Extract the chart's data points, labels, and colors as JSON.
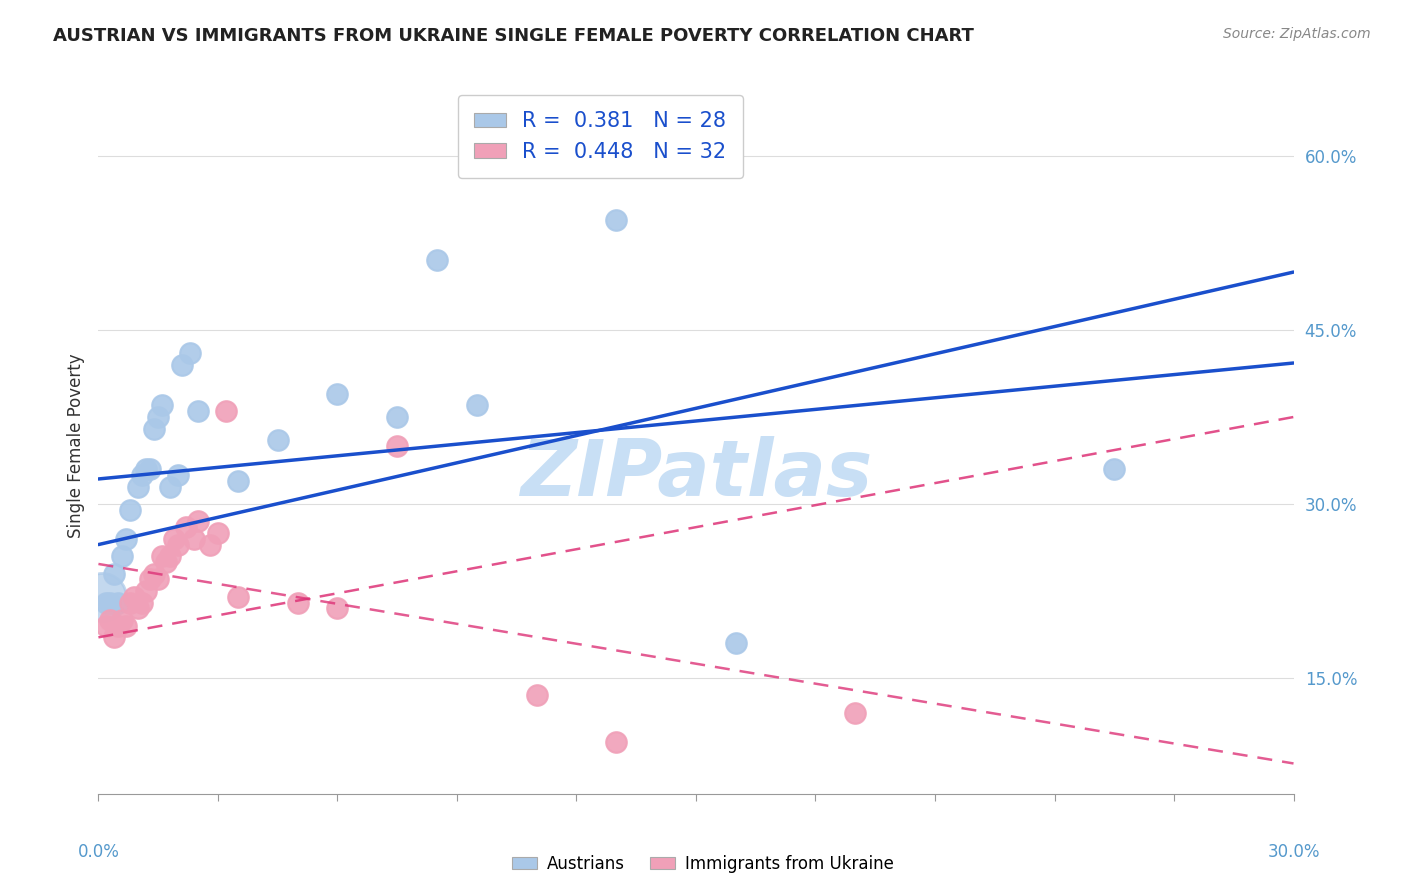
{
  "title": "AUSTRIAN VS IMMIGRANTS FROM UKRAINE SINGLE FEMALE POVERTY CORRELATION CHART",
  "source": "Source: ZipAtlas.com",
  "ylabel": "Single Female Poverty",
  "yaxis_ticks": [
    0.15,
    0.3,
    0.45,
    0.6
  ],
  "yaxis_labels": [
    "15.0%",
    "30.0%",
    "45.0%",
    "60.0%"
  ],
  "xlim": [
    0.0,
    0.3
  ],
  "ylim": [
    0.05,
    0.65
  ],
  "austrians": {
    "color": "#aac8e8",
    "line_color": "#1a4fcc",
    "x": [
      0.002,
      0.003,
      0.004,
      0.005,
      0.006,
      0.007,
      0.008,
      0.01,
      0.011,
      0.012,
      0.013,
      0.014,
      0.015,
      0.016,
      0.018,
      0.02,
      0.021,
      0.023,
      0.025,
      0.035,
      0.045,
      0.06,
      0.075,
      0.085,
      0.095,
      0.13,
      0.16,
      0.255
    ],
    "y": [
      0.215,
      0.215,
      0.24,
      0.215,
      0.255,
      0.27,
      0.295,
      0.315,
      0.325,
      0.33,
      0.33,
      0.365,
      0.375,
      0.385,
      0.315,
      0.325,
      0.42,
      0.43,
      0.38,
      0.32,
      0.355,
      0.395,
      0.375,
      0.51,
      0.385,
      0.545,
      0.18,
      0.33
    ]
  },
  "ukraine": {
    "color": "#f0a0b8",
    "line_color": "#dd3377",
    "x": [
      0.002,
      0.003,
      0.004,
      0.005,
      0.006,
      0.007,
      0.008,
      0.009,
      0.01,
      0.011,
      0.012,
      0.013,
      0.014,
      0.015,
      0.016,
      0.017,
      0.018,
      0.019,
      0.02,
      0.022,
      0.024,
      0.025,
      0.028,
      0.03,
      0.032,
      0.035,
      0.05,
      0.06,
      0.075,
      0.11,
      0.13,
      0.19
    ],
    "y": [
      0.195,
      0.2,
      0.185,
      0.195,
      0.2,
      0.195,
      0.215,
      0.22,
      0.21,
      0.215,
      0.225,
      0.235,
      0.24,
      0.235,
      0.255,
      0.25,
      0.255,
      0.27,
      0.265,
      0.28,
      0.27,
      0.285,
      0.265,
      0.275,
      0.38,
      0.22,
      0.215,
      0.21,
      0.35,
      0.135,
      0.095,
      0.12
    ]
  },
  "background_color": "#ffffff",
  "grid_color": "#dddddd",
  "title_fontsize": 13,
  "axis_label_color": "#5599cc",
  "watermark": "ZIPatlas",
  "watermark_color": "#c8dff5",
  "legend_blue_R": "0.381",
  "legend_blue_N": "28",
  "legend_pink_R": "0.448",
  "legend_pink_N": "32"
}
